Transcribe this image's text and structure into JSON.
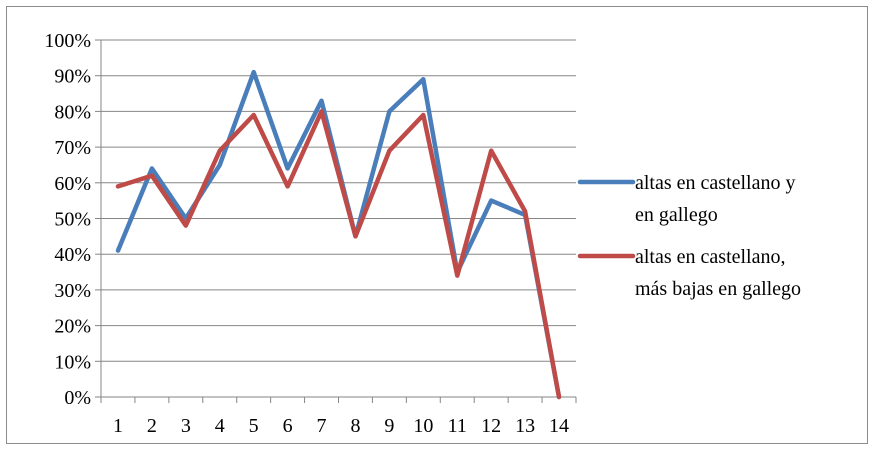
{
  "chart_data": {
    "type": "line",
    "title": "",
    "xlabel": "",
    "ylabel": "",
    "x": [
      1,
      2,
      3,
      4,
      5,
      6,
      7,
      8,
      9,
      10,
      11,
      12,
      13,
      14
    ],
    "ylim": [
      0,
      1
    ],
    "yticks": [
      "0%",
      "10%",
      "20%",
      "30%",
      "40%",
      "50%",
      "60%",
      "70%",
      "80%",
      "90%",
      "100%"
    ],
    "grid": true,
    "legend_position": "right",
    "series": [
      {
        "name": "altas en castellano y en gallego",
        "legend_lines": [
          "altas en castellano y",
          "en gallego"
        ],
        "color": "#4a7ebb",
        "values": [
          0.41,
          0.64,
          0.5,
          0.65,
          0.91,
          0.64,
          0.83,
          0.45,
          0.8,
          0.89,
          0.35,
          0.55,
          0.51,
          0.0
        ]
      },
      {
        "name": "altas en castellano, más bajas en gallego",
        "legend_lines": [
          "altas en castellano,",
          "más bajas en gallego"
        ],
        "color": "#be4b48",
        "values": [
          0.59,
          0.62,
          0.48,
          0.69,
          0.79,
          0.59,
          0.8,
          0.45,
          0.69,
          0.79,
          0.34,
          0.69,
          0.52,
          0.0
        ]
      }
    ]
  }
}
